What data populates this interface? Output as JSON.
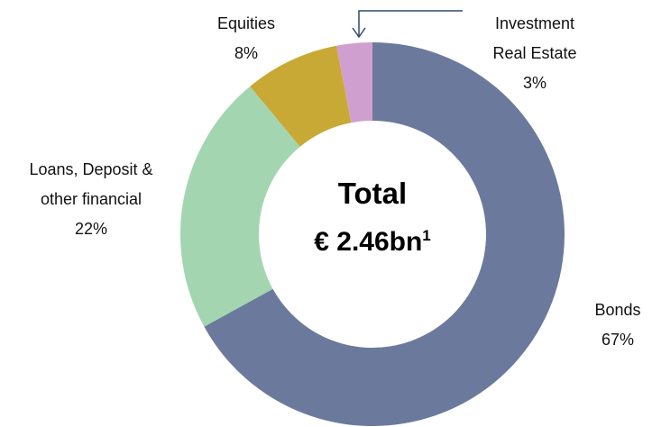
{
  "chart_data": {
    "type": "donut",
    "title": "Total",
    "total_label": "€ 2.46bn",
    "total_note": "1",
    "categories": [
      "Bonds",
      "Loans, Deposit & other financial",
      "Equities",
      "Investment Real Estate"
    ],
    "values": [
      67,
      22,
      8,
      3
    ],
    "value_labels": [
      "67%",
      "22%",
      "8%",
      "3%"
    ],
    "colors": [
      "#6b7a9c",
      "#a3d6b0",
      "#c9a935",
      "#cfa0cf"
    ]
  }
}
